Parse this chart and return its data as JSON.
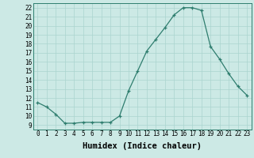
{
  "x": [
    0,
    1,
    2,
    3,
    4,
    5,
    6,
    7,
    8,
    9,
    10,
    11,
    12,
    13,
    14,
    15,
    16,
    17,
    18,
    19,
    20,
    21,
    22,
    23
  ],
  "y": [
    11.5,
    11.0,
    10.2,
    9.2,
    9.2,
    9.3,
    9.3,
    9.3,
    9.3,
    10.0,
    12.8,
    15.0,
    17.2,
    18.5,
    19.8,
    21.2,
    22.0,
    22.0,
    21.7,
    17.7,
    16.3,
    14.7,
    13.3,
    12.3
  ],
  "xlim": [
    -0.5,
    23.5
  ],
  "ylim": [
    8.5,
    22.5
  ],
  "yticks": [
    9,
    10,
    11,
    12,
    13,
    14,
    15,
    16,
    17,
    18,
    19,
    20,
    21,
    22
  ],
  "xticks": [
    0,
    1,
    2,
    3,
    4,
    5,
    6,
    7,
    8,
    9,
    10,
    11,
    12,
    13,
    14,
    15,
    16,
    17,
    18,
    19,
    20,
    21,
    22,
    23
  ],
  "xlabel": "Humidex (Indice chaleur)",
  "line_color": "#2e7d6e",
  "marker": "+",
  "bg_color": "#cce9e5",
  "grid_color": "#aad4cf",
  "tick_fontsize": 5.5,
  "xlabel_fontsize": 7.5,
  "marker_size": 3.5,
  "line_width": 0.9
}
